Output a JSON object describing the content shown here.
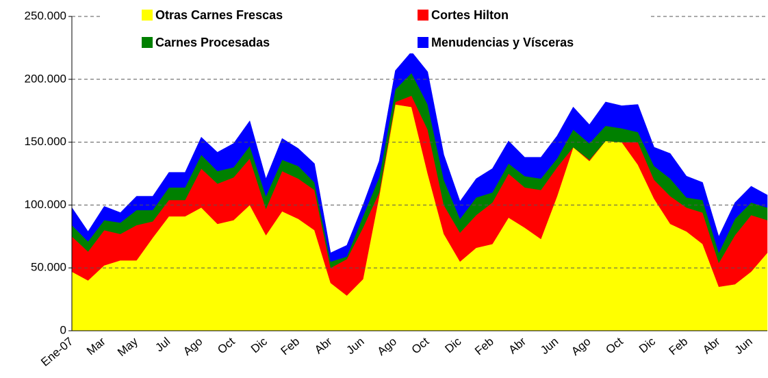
{
  "chart_data": {
    "type": "stacked_area",
    "categories": [
      "Ene-07",
      null,
      "Mar",
      null,
      "May",
      null,
      "Jul",
      null,
      "Ago",
      null,
      "Oct",
      null,
      "Dic",
      null,
      "Feb",
      null,
      "Abr",
      null,
      "Jun",
      null,
      "Ago",
      null,
      "Oct",
      null,
      "Dic",
      null,
      "Feb",
      null,
      "Abr",
      null,
      "Jun",
      null,
      "Ago",
      null,
      "Oct",
      null,
      "Dic",
      null,
      "Feb",
      null,
      "Abr",
      null,
      "Jun",
      null
    ],
    "series": [
      {
        "name": "Otras Carnes Frescas",
        "color": "#ffff00",
        "values": [
          47000,
          40000,
          52000,
          56000,
          56000,
          74000,
          91000,
          91000,
          98000,
          85000,
          88000,
          100000,
          76000,
          95000,
          89000,
          80000,
          38000,
          28000,
          41000,
          107000,
          180000,
          178000,
          125000,
          77000,
          55000,
          66000,
          69000,
          90000,
          82000,
          73000,
          107000,
          146000,
          135000,
          151000,
          150000,
          132000,
          105000,
          85000,
          79000,
          69000,
          35000,
          37000,
          47000,
          62000
        ]
      },
      {
        "name": "Cortes Hilton",
        "color": "#ff0000",
        "values": [
          28000,
          23000,
          28000,
          21000,
          28000,
          13000,
          13000,
          13000,
          31000,
          32000,
          34000,
          37000,
          21000,
          32000,
          32000,
          32000,
          12000,
          29000,
          41000,
          3000,
          2000,
          9000,
          35000,
          23000,
          23000,
          26000,
          33000,
          35000,
          32000,
          39000,
          23000,
          0,
          1000,
          0,
          0,
          18000,
          15000,
          22000,
          19000,
          25000,
          19000,
          39000,
          45000,
          26000
        ]
      },
      {
        "name": "Carnes Procesadas",
        "color": "#008000",
        "values": [
          9000,
          8000,
          8000,
          9000,
          12000,
          9000,
          10000,
          10000,
          11000,
          10000,
          8000,
          10000,
          10000,
          9000,
          10000,
          6000,
          5000,
          2000,
          9000,
          12000,
          10000,
          18000,
          20000,
          20000,
          11000,
          14000,
          8000,
          8000,
          9000,
          9000,
          7000,
          14000,
          13000,
          12000,
          11000,
          8000,
          11000,
          14000,
          8000,
          10000,
          8000,
          13000,
          10000,
          10000
        ]
      },
      {
        "name": "Menudencias y Vísceras",
        "color": "#0000ff",
        "values": [
          14000,
          8000,
          11000,
          8000,
          11000,
          11000,
          12000,
          12000,
          14000,
          15000,
          19000,
          20000,
          14000,
          17000,
          14000,
          15000,
          7000,
          9000,
          9000,
          13000,
          15000,
          17000,
          26000,
          20000,
          14000,
          15000,
          19000,
          18000,
          15000,
          17000,
          18000,
          18000,
          15000,
          19000,
          18000,
          22000,
          15000,
          20000,
          17000,
          14000,
          13000,
          13000,
          13000,
          10000
        ]
      }
    ],
    "ylim": [
      0,
      250000
    ],
    "yticks": [
      0,
      {
        "value": 50000,
        "label": "50.000"
      },
      {
        "value": 100000,
        "label": "100.000"
      },
      {
        "value": 150000,
        "label": "150.000"
      },
      {
        "value": 200000,
        "label": "200.000"
      },
      {
        "value": 250000,
        "label": "250.000"
      }
    ],
    "grid": true,
    "legend": "top"
  }
}
